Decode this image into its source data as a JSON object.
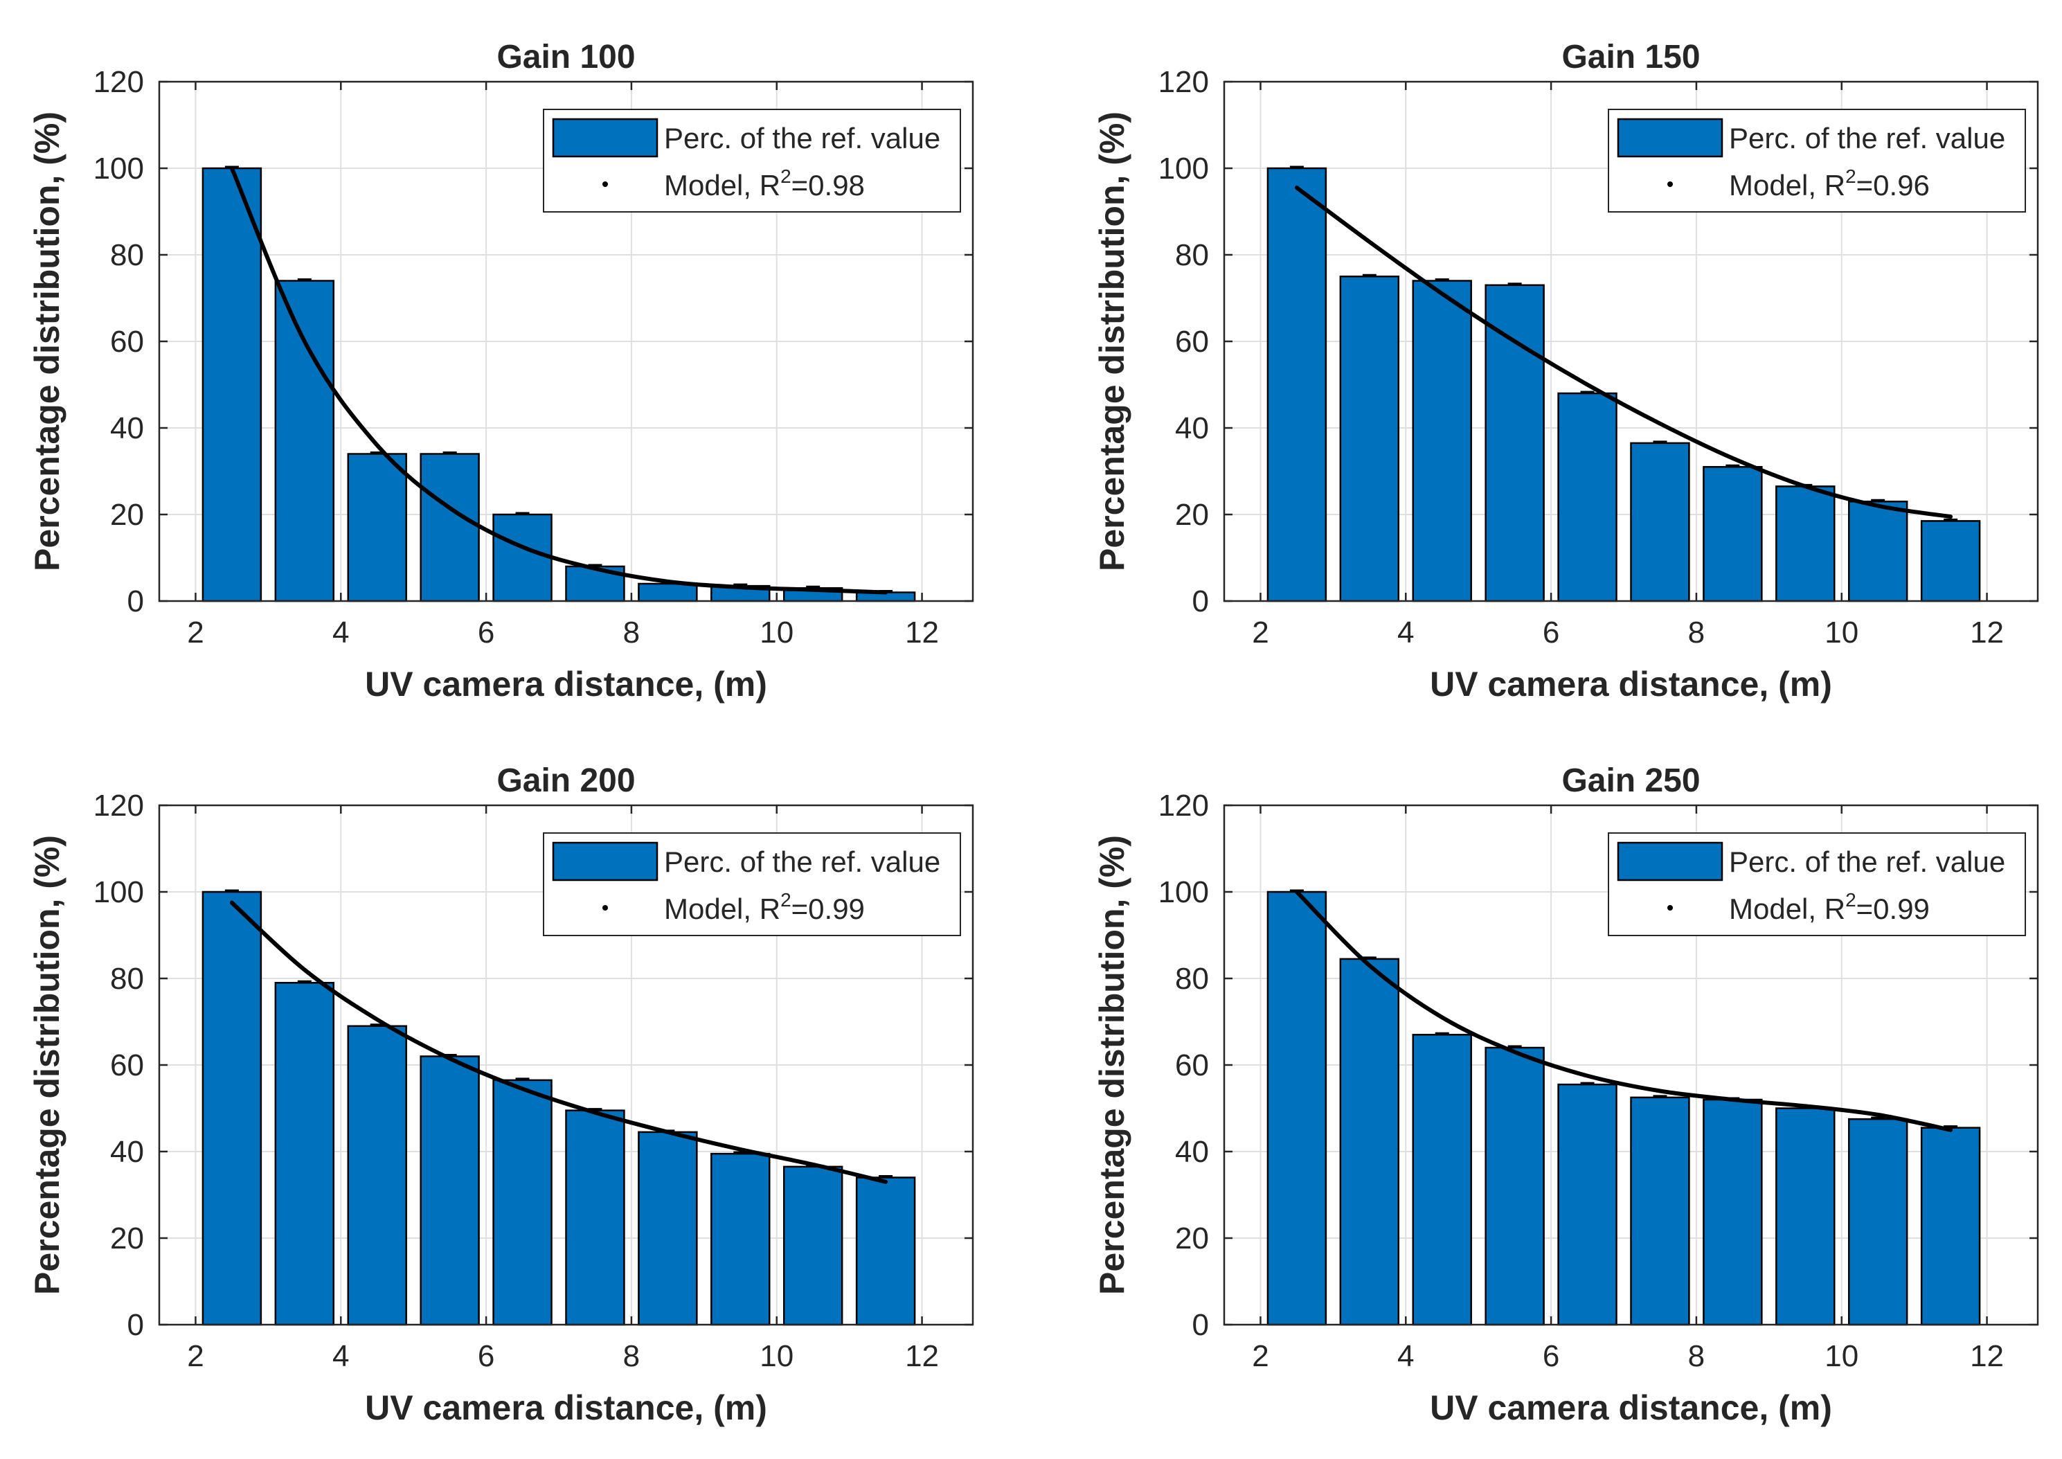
{
  "colors": {
    "bar": "#0072BD",
    "model": "#000000"
  },
  "chart_data": [
    {
      "type": "bar",
      "title": "Gain 100",
      "xlabel": "UV camera distance, (m)",
      "ylabel": "Percentage distribution, (%)",
      "xlim": [
        1.5,
        12.7
      ],
      "ylim": [
        0,
        120
      ],
      "xticks": [
        "2",
        "4",
        "6",
        "8",
        "10",
        "12"
      ],
      "yticks": [
        "0",
        "20",
        "40",
        "60",
        "80",
        "100",
        "120"
      ],
      "grid": true,
      "legend": {
        "position": "top-right",
        "bar_label": "Perc. of the ref. value",
        "model_label_prefix": "Model, R",
        "model_label_sup": "2",
        "model_label_suffix": "=0.98"
      },
      "x": [
        2.5,
        3.5,
        4.5,
        5.5,
        6.5,
        7.5,
        8.5,
        9.5,
        10.5,
        11.5
      ],
      "series": [
        {
          "name": "Perc. of the ref. value",
          "values": [
            100,
            74,
            34,
            34,
            20,
            8,
            4,
            3.5,
            3,
            2
          ]
        },
        {
          "name": "Model, R2=0.98",
          "values": [
            100,
            60,
            36,
            21.5,
            12.5,
            7.5,
            4.5,
            3.2,
            2.6,
            2
          ]
        }
      ]
    },
    {
      "type": "bar",
      "title": "Gain 150",
      "xlabel": "UV camera distance, (m)",
      "ylabel": "Percentage distribution, (%)",
      "xlim": [
        1.5,
        12.7
      ],
      "ylim": [
        0,
        120
      ],
      "xticks": [
        "2",
        "4",
        "6",
        "8",
        "10",
        "12"
      ],
      "yticks": [
        "0",
        "20",
        "40",
        "60",
        "80",
        "100",
        "120"
      ],
      "grid": true,
      "legend": {
        "position": "top-right",
        "bar_label": "Perc. of the ref. value",
        "model_label_prefix": "Model, R",
        "model_label_sup": "2",
        "model_label_suffix": "=0.96"
      },
      "x": [
        2.5,
        3.5,
        4.5,
        5.5,
        6.5,
        7.5,
        8.5,
        9.5,
        10.5,
        11.5
      ],
      "series": [
        {
          "name": "Perc. of the ref. value",
          "values": [
            100,
            75,
            74,
            73,
            48,
            36.5,
            31,
            26.5,
            23,
            18.5
          ]
        },
        {
          "name": "Model, R2=0.96",
          "values": [
            95.5,
            83,
            71,
            60,
            50,
            41,
            33,
            26.5,
            22,
            19.5
          ]
        }
      ]
    },
    {
      "type": "bar",
      "title": "Gain 200",
      "xlabel": "UV camera distance, (m)",
      "ylabel": "Percentage distribution, (%)",
      "xlim": [
        1.5,
        12.7
      ],
      "ylim": [
        0,
        120
      ],
      "xticks": [
        "2",
        "4",
        "6",
        "8",
        "10",
        "12"
      ],
      "yticks": [
        "0",
        "20",
        "40",
        "60",
        "80",
        "100",
        "120"
      ],
      "grid": true,
      "legend": {
        "position": "top-right",
        "bar_label": "Perc. of the ref. value",
        "model_label_prefix": "Model, R",
        "model_label_sup": "2",
        "model_label_suffix": "=0.99"
      },
      "x": [
        2.5,
        3.5,
        4.5,
        5.5,
        6.5,
        7.5,
        8.5,
        9.5,
        10.5,
        11.5
      ],
      "series": [
        {
          "name": "Perc. of the ref. value",
          "values": [
            100,
            79,
            69,
            62,
            56.5,
            49.5,
            44.5,
            39.5,
            36.5,
            34
          ]
        },
        {
          "name": "Model, R2=0.99",
          "values": [
            97.5,
            82,
            70.5,
            61.5,
            54.5,
            49,
            44.5,
            40.5,
            37,
            33
          ]
        }
      ]
    },
    {
      "type": "bar",
      "title": "Gain 250",
      "xlabel": "UV camera distance, (m)",
      "ylabel": "Percentage distribution, (%)",
      "xlim": [
        1.5,
        12.7
      ],
      "ylim": [
        0,
        120
      ],
      "xticks": [
        "2",
        "4",
        "6",
        "8",
        "10",
        "12"
      ],
      "yticks": [
        "0",
        "20",
        "40",
        "60",
        "80",
        "100",
        "120"
      ],
      "grid": true,
      "legend": {
        "position": "top-right",
        "bar_label": "Perc. of the ref. value",
        "model_label_prefix": "Model, R",
        "model_label_sup": "2",
        "model_label_suffix": "=0.99"
      },
      "x": [
        2.5,
        3.5,
        4.5,
        5.5,
        6.5,
        7.5,
        8.5,
        9.5,
        10.5,
        11.5
      ],
      "series": [
        {
          "name": "Perc. of the ref. value",
          "values": [
            100,
            84.5,
            67,
            64,
            55.5,
            52.5,
            52,
            50,
            47.5,
            45.5
          ]
        },
        {
          "name": "Model, R2=0.99",
          "values": [
            100,
            83,
            71,
            63,
            57.5,
            54,
            52,
            50.5,
            48.5,
            45
          ]
        }
      ]
    }
  ]
}
